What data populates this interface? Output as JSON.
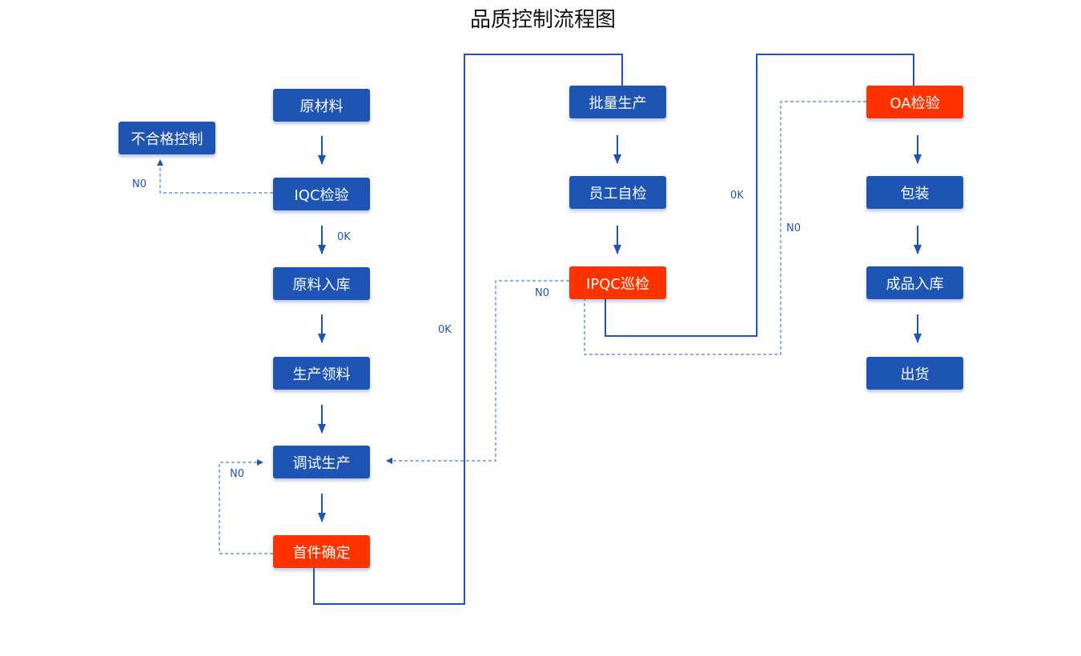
{
  "title": "品质控制流程图",
  "colors": {
    "process": "#1e55b5",
    "checkpoint": "#ff3300",
    "connector": "#1e55b5"
  },
  "nodes": {
    "raw_material": "原材料",
    "nonconforming_control": "不合格控制",
    "iqc": "IQC检验",
    "raw_storage": "原料入库",
    "material_requisition": "生产领料",
    "trial_production": "调试生产",
    "first_article": "首件确定",
    "mass_production": "批量生产",
    "self_inspection": "员工自检",
    "ipqc": "IPQC巡检",
    "oa": "OA检验",
    "packaging": "包装",
    "finished_storage": "成品入库",
    "shipment": "出货"
  },
  "labels": {
    "iqc_no": "N0",
    "iqc_ok": "0K",
    "first_ok": "0K",
    "first_no": "N0",
    "ipqc_no": "N0",
    "ipqc_ok": "0K",
    "oa_no": "N0"
  }
}
